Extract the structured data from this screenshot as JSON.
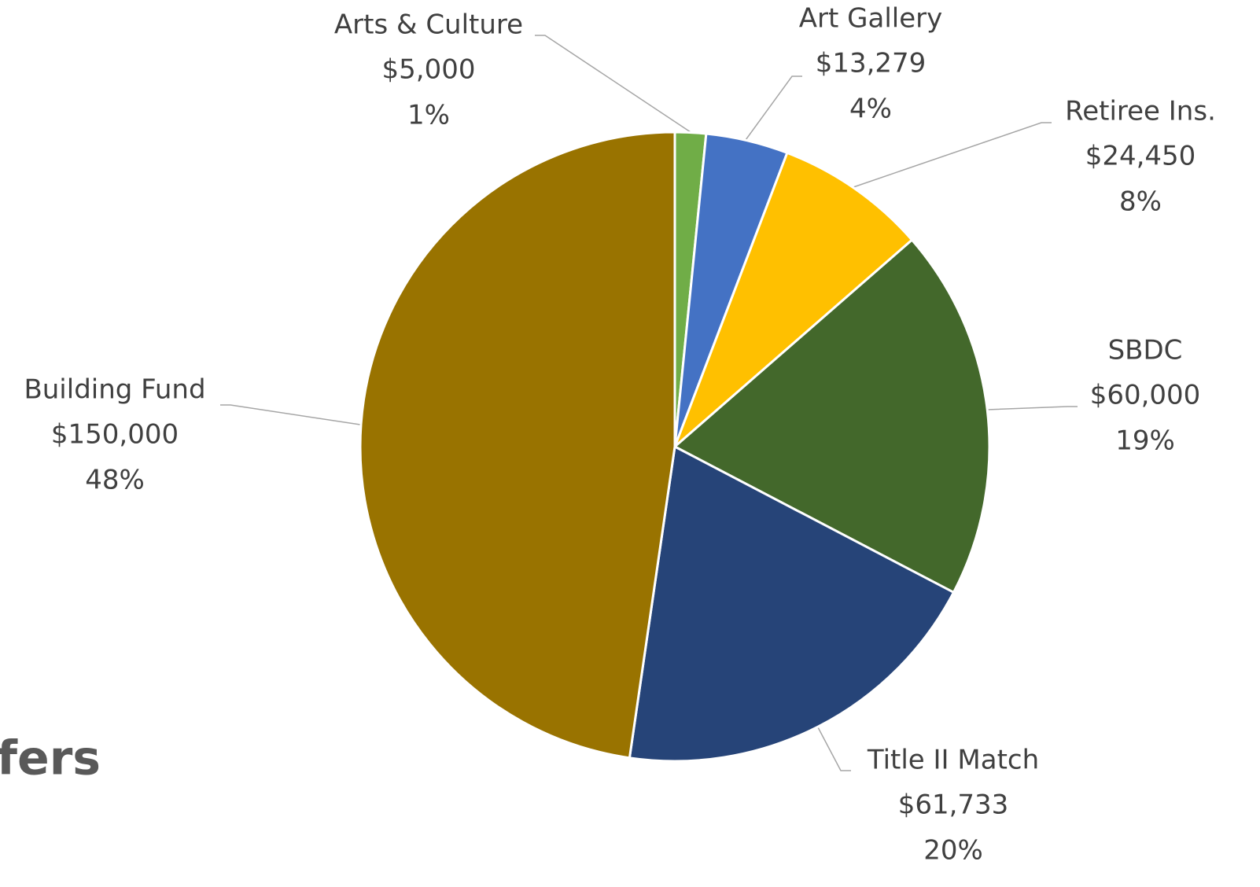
{
  "chart_data": {
    "type": "pie",
    "categories": [
      "Arts & Culture",
      "Art Gallery",
      "Retiree Ins.",
      "SBDC",
      "Title II Match",
      "Building Fund"
    ],
    "values": [
      5000,
      13279,
      24450,
      60000,
      61733,
      150000
    ],
    "value_labels": [
      "$5,000",
      "$13,279",
      "$24,450",
      "$60,000",
      "$61,733",
      "$150,000"
    ],
    "percent_labels": [
      "1%",
      "4%",
      "8%",
      "19%",
      "20%",
      "48%"
    ],
    "colors": [
      "#70ad47",
      "#4472c4",
      "#ffc000",
      "#43682b",
      "#264478",
      "#997300"
    ]
  },
  "background_text": "fers"
}
